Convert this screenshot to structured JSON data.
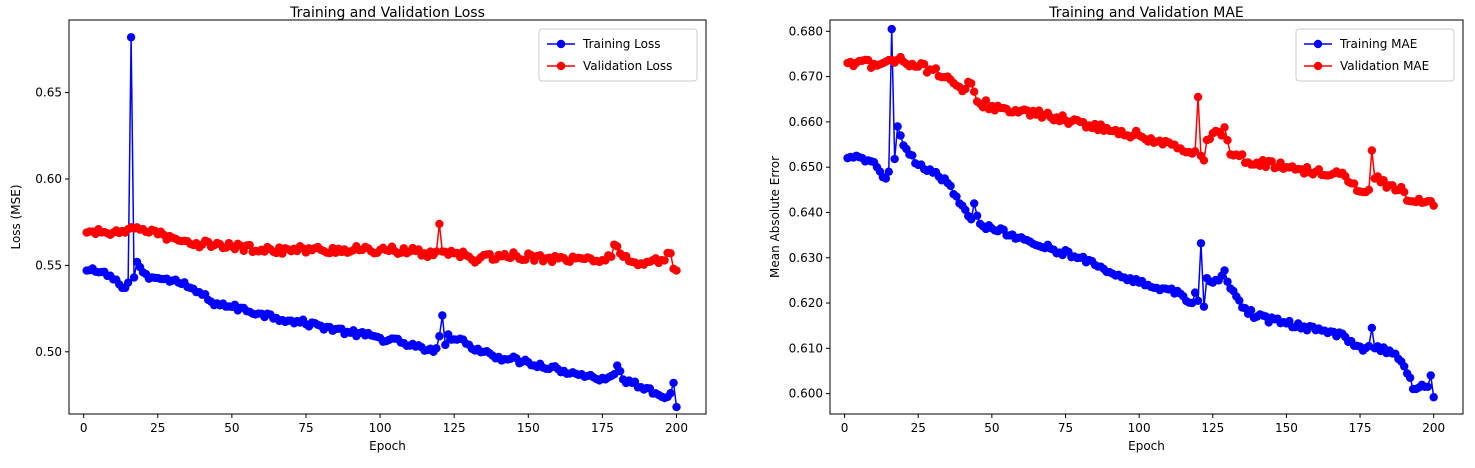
{
  "chart_data": [
    {
      "type": "line",
      "title": "Training and Validation Loss",
      "xlabel": "Epoch",
      "ylabel": "Loss (MSE)",
      "xlim": [
        -4.95,
        209.95
      ],
      "ylim": [
        0.464,
        0.692
      ],
      "xticks": [
        0,
        25,
        50,
        75,
        100,
        125,
        150,
        175,
        200
      ],
      "xtick_labels": [
        "0",
        "25",
        "50",
        "75",
        "100",
        "125",
        "150",
        "175",
        "200"
      ],
      "yticks": [
        0.5,
        0.55,
        0.6,
        0.65
      ],
      "ytick_labels": [
        "0.50",
        "0.55",
        "0.60",
        "0.65"
      ],
      "grid": false,
      "legend_position": "top-right",
      "series": [
        {
          "name": "Training Loss",
          "color": "#0000ff",
          "marker": "circle",
          "keypoints": [
            [
              1,
              0.547
            ],
            [
              5,
              0.546
            ],
            [
              9,
              0.544
            ],
            [
              12,
              0.539
            ],
            [
              13,
              0.537
            ],
            [
              14,
              0.537
            ],
            [
              15,
              0.54
            ],
            [
              16,
              0.682
            ],
            [
              17,
              0.543
            ],
            [
              18,
              0.552
            ],
            [
              19,
              0.549
            ],
            [
              21,
              0.545
            ],
            [
              23,
              0.543
            ],
            [
              27,
              0.542
            ],
            [
              32,
              0.54
            ],
            [
              36,
              0.537
            ],
            [
              40,
              0.533
            ],
            [
              43,
              0.529
            ],
            [
              45,
              0.528
            ],
            [
              50,
              0.526
            ],
            [
              60,
              0.522
            ],
            [
              70,
              0.518
            ],
            [
              80,
              0.515
            ],
            [
              90,
              0.511
            ],
            [
              100,
              0.508
            ],
            [
              108,
              0.505
            ],
            [
              112,
              0.503
            ],
            [
              116,
              0.501
            ],
            [
              118,
              0.5
            ],
            [
              119,
              0.502
            ],
            [
              120,
              0.509
            ],
            [
              121,
              0.521
            ],
            [
              122,
              0.504
            ],
            [
              123,
              0.51
            ],
            [
              124,
              0.507
            ],
            [
              126,
              0.507
            ],
            [
              130,
              0.504
            ],
            [
              135,
              0.5
            ],
            [
              140,
              0.497
            ],
            [
              150,
              0.494
            ],
            [
              160,
              0.49
            ],
            [
              170,
              0.486
            ],
            [
              176,
              0.484
            ],
            [
              178,
              0.486
            ],
            [
              179,
              0.487
            ],
            [
              180,
              0.492
            ],
            [
              182,
              0.484
            ],
            [
              185,
              0.482
            ],
            [
              190,
              0.479
            ],
            [
              195,
              0.474
            ],
            [
              198,
              0.476
            ],
            [
              199,
              0.482
            ],
            [
              200,
              0.468
            ]
          ],
          "noise": 0.0018
        },
        {
          "name": "Validation Loss",
          "color": "#ff0000",
          "marker": "circle",
          "keypoints": [
            [
              1,
              0.569
            ],
            [
              10,
              0.569
            ],
            [
              14,
              0.569
            ],
            [
              15,
              0.571
            ],
            [
              16,
              0.572
            ],
            [
              18,
              0.572
            ],
            [
              20,
              0.571
            ],
            [
              22,
              0.569
            ],
            [
              25,
              0.568
            ],
            [
              30,
              0.566
            ],
            [
              35,
              0.564
            ],
            [
              40,
              0.562
            ],
            [
              45,
              0.563
            ],
            [
              50,
              0.561
            ],
            [
              60,
              0.559
            ],
            [
              80,
              0.559
            ],
            [
              100,
              0.559
            ],
            [
              110,
              0.558
            ],
            [
              115,
              0.557
            ],
            [
              118,
              0.556
            ],
            [
              119,
              0.558
            ],
            [
              120,
              0.574
            ],
            [
              121,
              0.558
            ],
            [
              125,
              0.557
            ],
            [
              130,
              0.555
            ],
            [
              133,
              0.553
            ],
            [
              140,
              0.556
            ],
            [
              160,
              0.554
            ],
            [
              175,
              0.553
            ],
            [
              178,
              0.555
            ],
            [
              179,
              0.562
            ],
            [
              180,
              0.561
            ],
            [
              182,
              0.555
            ],
            [
              185,
              0.552
            ],
            [
              190,
              0.552
            ],
            [
              195,
              0.553
            ],
            [
              198,
              0.557
            ],
            [
              199,
              0.548
            ],
            [
              200,
              0.547
            ]
          ],
          "noise": 0.0022
        }
      ]
    },
    {
      "type": "line",
      "title": "Training and Validation MAE",
      "xlabel": "Epoch",
      "ylabel": "Mean Absolute Error",
      "xlim": [
        -4.95,
        209.95
      ],
      "ylim": [
        0.5955,
        0.6825
      ],
      "xticks": [
        0,
        25,
        50,
        75,
        100,
        125,
        150,
        175,
        200
      ],
      "xtick_labels": [
        "0",
        "25",
        "50",
        "75",
        "100",
        "125",
        "150",
        "175",
        "200"
      ],
      "yticks": [
        0.6,
        0.61,
        0.62,
        0.63,
        0.64,
        0.65,
        0.66,
        0.67,
        0.68
      ],
      "ytick_labels": [
        "0.600",
        "0.610",
        "0.620",
        "0.630",
        "0.640",
        "0.650",
        "0.660",
        "0.670",
        "0.680"
      ],
      "grid": false,
      "legend_position": "top-right",
      "series": [
        {
          "name": "Training MAE",
          "color": "#0000ff",
          "marker": "circle",
          "keypoints": [
            [
              1,
              0.652
            ],
            [
              5,
              0.6522
            ],
            [
              8,
              0.6515
            ],
            [
              11,
              0.65
            ],
            [
              13,
              0.6478
            ],
            [
              14,
              0.6475
            ],
            [
              15,
              0.649
            ],
            [
              16,
              0.6805
            ],
            [
              17,
              0.6518
            ],
            [
              18,
              0.659
            ],
            [
              19,
              0.657
            ],
            [
              20,
              0.6548
            ],
            [
              22,
              0.6528
            ],
            [
              25,
              0.6505
            ],
            [
              30,
              0.6488
            ],
            [
              35,
              0.6465
            ],
            [
              40,
              0.6415
            ],
            [
              43,
              0.6385
            ],
            [
              44,
              0.642
            ],
            [
              46,
              0.6375
            ],
            [
              50,
              0.6365
            ],
            [
              60,
              0.6345
            ],
            [
              70,
              0.632
            ],
            [
              80,
              0.63
            ],
            [
              90,
              0.6268
            ],
            [
              100,
              0.6245
            ],
            [
              110,
              0.623
            ],
            [
              115,
              0.6215
            ],
            [
              118,
              0.62
            ],
            [
              119,
              0.6223
            ],
            [
              120,
              0.6205
            ],
            [
              121,
              0.6332
            ],
            [
              122,
              0.6192
            ],
            [
              123,
              0.6255
            ],
            [
              125,
              0.6245
            ],
            [
              128,
              0.626
            ],
            [
              129,
              0.6272
            ],
            [
              131,
              0.6232
            ],
            [
              135,
              0.619
            ],
            [
              140,
              0.617
            ],
            [
              150,
              0.6155
            ],
            [
              160,
              0.614
            ],
            [
              170,
              0.6125
            ],
            [
              176,
              0.6095
            ],
            [
              178,
              0.6105
            ],
            [
              179,
              0.6145
            ],
            [
              180,
              0.61
            ],
            [
              185,
              0.6095
            ],
            [
              190,
              0.606
            ],
            [
              192,
              0.6035
            ],
            [
              193,
              0.601
            ],
            [
              197,
              0.6015
            ],
            [
              198,
              0.6015
            ],
            [
              199,
              0.604
            ],
            [
              200,
              0.5992
            ]
          ],
          "noise": 0.0007
        },
        {
          "name": "Validation MAE",
          "color": "#ff0000",
          "marker": "circle",
          "keypoints": [
            [
              1,
              0.673
            ],
            [
              10,
              0.6728
            ],
            [
              14,
              0.6733
            ],
            [
              16,
              0.6737
            ],
            [
              18,
              0.6737
            ],
            [
              20,
              0.6733
            ],
            [
              25,
              0.6722
            ],
            [
              30,
              0.6715
            ],
            [
              35,
              0.67
            ],
            [
              40,
              0.6668
            ],
            [
              43,
              0.6685
            ],
            [
              45,
              0.6645
            ],
            [
              50,
              0.6635
            ],
            [
              60,
              0.6625
            ],
            [
              70,
              0.661
            ],
            [
              80,
              0.66
            ],
            [
              90,
              0.658
            ],
            [
              100,
              0.657
            ],
            [
              110,
              0.6555
            ],
            [
              115,
              0.6535
            ],
            [
              118,
              0.653
            ],
            [
              119,
              0.6535
            ],
            [
              120,
              0.6655
            ],
            [
              121,
              0.6525
            ],
            [
              122,
              0.6515
            ],
            [
              123,
              0.656
            ],
            [
              125,
              0.6575
            ],
            [
              128,
              0.657
            ],
            [
              129,
              0.6588
            ],
            [
              131,
              0.6528
            ],
            [
              140,
              0.651
            ],
            [
              150,
              0.65
            ],
            [
              160,
              0.649
            ],
            [
              170,
              0.648
            ],
            [
              176,
              0.6445
            ],
            [
              178,
              0.645
            ],
            [
              179,
              0.6537
            ],
            [
              180,
              0.6475
            ],
            [
              185,
              0.646
            ],
            [
              190,
              0.6445
            ],
            [
              192,
              0.6425
            ],
            [
              195,
              0.643
            ],
            [
              198,
              0.6425
            ],
            [
              199,
              0.6425
            ],
            [
              200,
              0.6415
            ]
          ],
          "noise": 0.0009
        }
      ]
    }
  ]
}
